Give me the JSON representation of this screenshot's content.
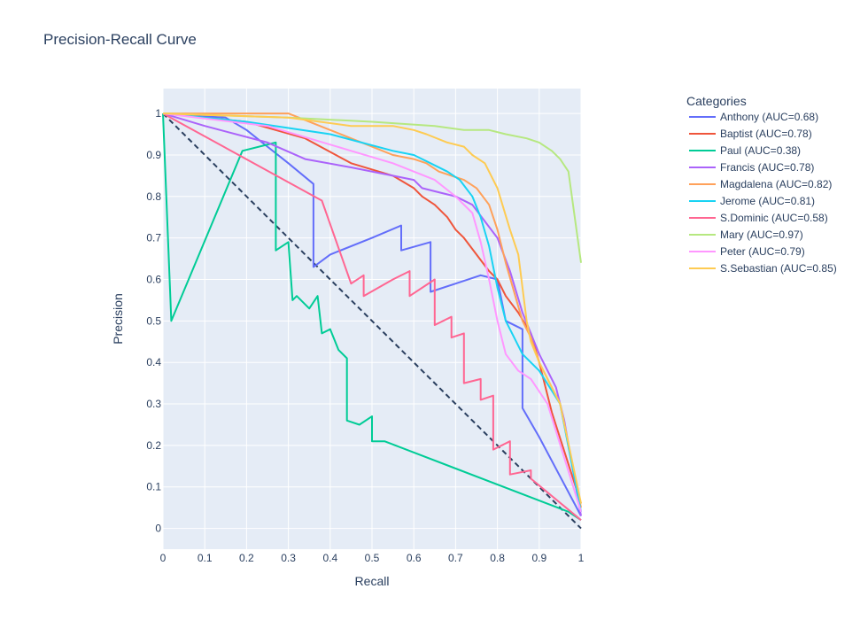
{
  "chart_data": {
    "type": "line",
    "title": "Precision-Recall Curve",
    "xlabel": "Recall",
    "ylabel": "Precision",
    "xlim": [
      0,
      1
    ],
    "ylim": [
      -0.05,
      1.06
    ],
    "x_ticks": [
      "0",
      "0.1",
      "0.2",
      "0.3",
      "0.4",
      "0.5",
      "0.6",
      "0.7",
      "0.8",
      "0.9",
      "1"
    ],
    "y_ticks": [
      "0",
      "0.1",
      "0.2",
      "0.3",
      "0.4",
      "0.5",
      "0.6",
      "0.7",
      "0.8",
      "0.9",
      "1"
    ],
    "grid": true,
    "background": "#e5ecf6",
    "legend": {
      "title": "Categories",
      "placement": "right"
    },
    "baseline": {
      "x": [
        0,
        1
      ],
      "y": [
        1,
        0
      ],
      "color": "#2a3f5f",
      "dash": true
    },
    "series": [
      {
        "name": "Anthony (AUC=0.68)",
        "color": "#636efa",
        "x": [
          0,
          0.15,
          0.2,
          0.25,
          0.3,
          0.36,
          0.36,
          0.4,
          0.5,
          0.57,
          0.57,
          0.64,
          0.64,
          0.7,
          0.76,
          0.8,
          0.82,
          0.86,
          0.86,
          0.9,
          1.0
        ],
        "y": [
          1.0,
          0.99,
          0.96,
          0.92,
          0.88,
          0.83,
          0.63,
          0.66,
          0.7,
          0.73,
          0.67,
          0.69,
          0.57,
          0.59,
          0.61,
          0.6,
          0.5,
          0.48,
          0.29,
          0.22,
          0.03
        ]
      },
      {
        "name": "Baptist (AUC=0.78)",
        "color": "#ef553b",
        "x": [
          0,
          0.2,
          0.34,
          0.45,
          0.55,
          0.6,
          0.62,
          0.65,
          0.68,
          0.7,
          0.72,
          0.75,
          0.78,
          0.8,
          0.82,
          0.85,
          0.88,
          0.9,
          0.93,
          1.0
        ],
        "y": [
          1.0,
          0.98,
          0.94,
          0.88,
          0.85,
          0.82,
          0.8,
          0.78,
          0.75,
          0.72,
          0.7,
          0.66,
          0.62,
          0.6,
          0.56,
          0.52,
          0.47,
          0.4,
          0.28,
          0.06
        ]
      },
      {
        "name": "Paul (AUC=0.38)",
        "color": "#00cc96",
        "x": [
          0,
          0.02,
          0.19,
          0.27,
          0.27,
          0.3,
          0.31,
          0.32,
          0.35,
          0.37,
          0.38,
          0.4,
          0.42,
          0.44,
          0.44,
          0.47,
          0.5,
          0.5,
          0.53,
          0.97,
          1.0
        ],
        "y": [
          1.0,
          0.5,
          0.91,
          0.93,
          0.67,
          0.69,
          0.55,
          0.56,
          0.53,
          0.56,
          0.47,
          0.48,
          0.43,
          0.41,
          0.26,
          0.25,
          0.27,
          0.21,
          0.21,
          0.04,
          0.02
        ]
      },
      {
        "name": "Francis (AUC=0.78)",
        "color": "#ab63fa",
        "x": [
          0,
          0.1,
          0.25,
          0.34,
          0.45,
          0.55,
          0.6,
          0.62,
          0.66,
          0.7,
          0.74,
          0.77,
          0.8,
          0.83,
          0.86,
          0.9,
          0.94,
          0.96,
          1.0
        ],
        "y": [
          1.0,
          0.97,
          0.93,
          0.89,
          0.87,
          0.85,
          0.84,
          0.82,
          0.81,
          0.8,
          0.78,
          0.74,
          0.7,
          0.62,
          0.52,
          0.42,
          0.34,
          0.26,
          0.03
        ]
      },
      {
        "name": "Magdalena (AUC=0.82)",
        "color": "#ffa15a",
        "x": [
          0,
          0.3,
          0.4,
          0.5,
          0.55,
          0.6,
          0.63,
          0.66,
          0.69,
          0.72,
          0.75,
          0.78,
          0.8,
          0.82,
          0.86,
          0.88,
          0.9,
          0.95,
          1.0
        ],
        "y": [
          1.0,
          1.0,
          0.96,
          0.92,
          0.9,
          0.89,
          0.88,
          0.86,
          0.85,
          0.84,
          0.82,
          0.78,
          0.72,
          0.64,
          0.5,
          0.46,
          0.4,
          0.3,
          0.05
        ]
      },
      {
        "name": "Jerome (AUC=0.81)",
        "color": "#19d3f3",
        "x": [
          0,
          0.2,
          0.4,
          0.55,
          0.6,
          0.64,
          0.68,
          0.71,
          0.74,
          0.76,
          0.78,
          0.8,
          0.82,
          0.84,
          0.86,
          0.9,
          0.95,
          1.0
        ],
        "y": [
          1.0,
          0.98,
          0.95,
          0.91,
          0.9,
          0.88,
          0.86,
          0.84,
          0.8,
          0.75,
          0.68,
          0.58,
          0.5,
          0.46,
          0.42,
          0.38,
          0.3,
          0.04
        ]
      },
      {
        "name": "S.Dominic (AUC=0.58)",
        "color": "#ff6692",
        "x": [
          0,
          0.38,
          0.45,
          0.48,
          0.48,
          0.55,
          0.59,
          0.59,
          0.65,
          0.65,
          0.69,
          0.69,
          0.72,
          0.72,
          0.76,
          0.76,
          0.79,
          0.79,
          0.83,
          0.83,
          0.88,
          0.88,
          1.0
        ],
        "y": [
          1.0,
          0.79,
          0.59,
          0.61,
          0.56,
          0.6,
          0.62,
          0.56,
          0.6,
          0.49,
          0.51,
          0.46,
          0.47,
          0.35,
          0.36,
          0.31,
          0.32,
          0.19,
          0.21,
          0.13,
          0.14,
          0.12,
          0.02
        ]
      },
      {
        "name": "Mary (AUC=0.97)",
        "color": "#b6e880",
        "x": [
          0,
          0.3,
          0.5,
          0.65,
          0.72,
          0.78,
          0.82,
          0.87,
          0.9,
          0.93,
          0.95,
          0.97,
          1.0
        ],
        "y": [
          1.0,
          0.99,
          0.98,
          0.97,
          0.96,
          0.96,
          0.95,
          0.94,
          0.93,
          0.91,
          0.89,
          0.86,
          0.64
        ]
      },
      {
        "name": "Peter (AUC=0.79)",
        "color": "#ff97ff",
        "x": [
          0,
          0.25,
          0.45,
          0.55,
          0.6,
          0.65,
          0.7,
          0.74,
          0.76,
          0.78,
          0.8,
          0.82,
          0.85,
          0.88,
          0.92,
          1.0
        ],
        "y": [
          1.0,
          0.97,
          0.91,
          0.88,
          0.86,
          0.84,
          0.8,
          0.76,
          0.69,
          0.6,
          0.5,
          0.42,
          0.38,
          0.36,
          0.3,
          0.04
        ]
      },
      {
        "name": "S.Sebastian (AUC=0.85)",
        "color": "#fecb52",
        "x": [
          0,
          0.3,
          0.45,
          0.55,
          0.6,
          0.63,
          0.68,
          0.72,
          0.74,
          0.77,
          0.8,
          0.83,
          0.85,
          0.87,
          0.88,
          0.9,
          0.95,
          1.0
        ],
        "y": [
          1.0,
          0.99,
          0.97,
          0.97,
          0.96,
          0.95,
          0.93,
          0.92,
          0.9,
          0.88,
          0.82,
          0.72,
          0.66,
          0.5,
          0.45,
          0.4,
          0.3,
          0.06
        ]
      }
    ]
  }
}
